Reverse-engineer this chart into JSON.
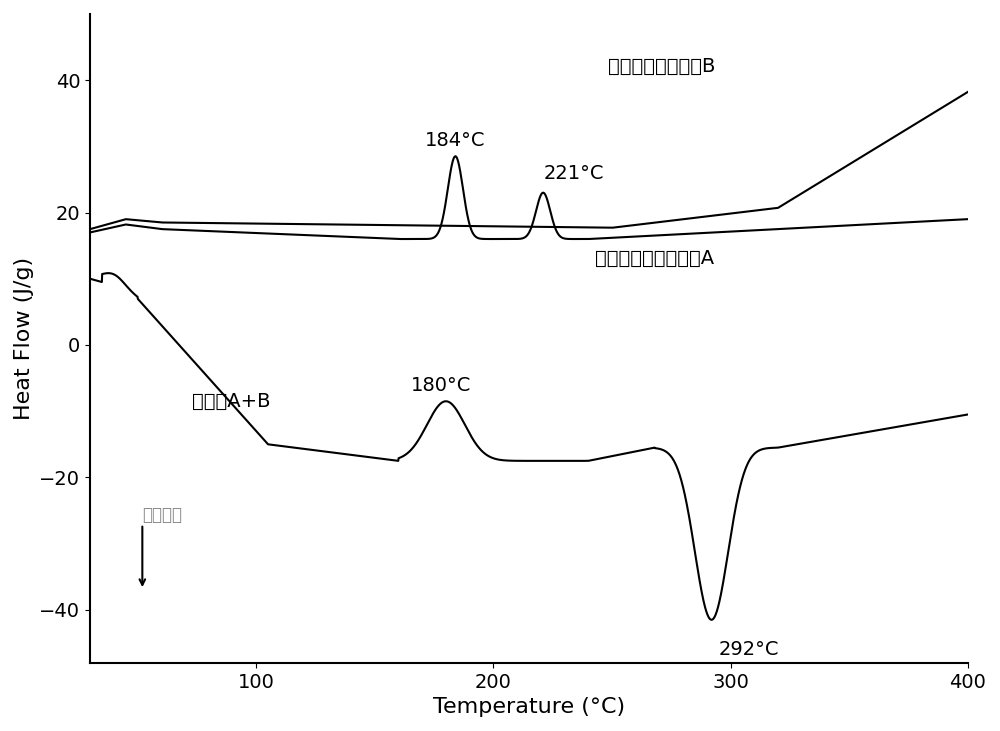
{
  "xlim": [
    30,
    400
  ],
  "ylim": [
    -48,
    50
  ],
  "xlabel": "Temperature (°C)",
  "ylabel": "Heat Flow (J/g)",
  "xticks": [
    100,
    200,
    300,
    400
  ],
  "yticks": [
    -40,
    -20,
    0,
    20,
    40
  ],
  "label_B": "双邻苯二甲腔单体B",
  "label_A": "六元脂环酰亚胺单体A",
  "label_AB": "共混物A+B",
  "annotation_184": "184°C",
  "annotation_221": "221°C",
  "annotation_180": "180°C",
  "annotation_292": "292°C",
  "arrow_text": "向下放熳",
  "line_color": "#000000",
  "background_color": "#ffffff",
  "font_size_label": 16,
  "font_size_tick": 14,
  "font_size_annotation": 14,
  "arrow_text_color": "#888888"
}
